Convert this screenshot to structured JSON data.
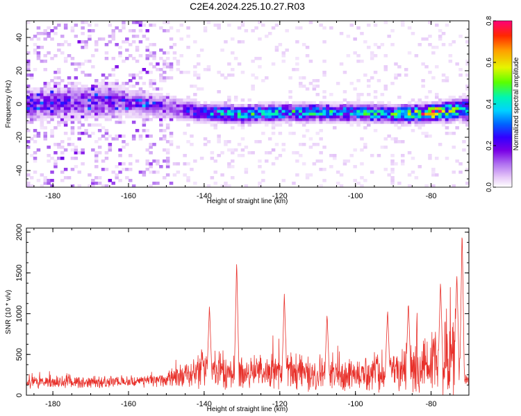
{
  "figure_title": "C2E4.2024.225.10.27.R03",
  "chart_data": [
    {
      "type": "heatmap",
      "xlabel": "Height of straight line (km)",
      "ylabel": "Frequency (Hz)",
      "xlim": [
        -187,
        -70
      ],
      "ylim": [
        -50,
        50
      ],
      "x_ticks": [
        -180,
        -160,
        -140,
        -120,
        -100,
        -80
      ],
      "y_ticks": [
        -40,
        -20,
        0,
        20,
        40
      ],
      "colorbar": {
        "label": "Normalized spectral amplitude",
        "range": [
          0,
          0.8
        ],
        "ticks": [
          0.0,
          0.2,
          0.4,
          0.6,
          0.8
        ],
        "colormap": [
          "#ffffff",
          "#e6c8f8",
          "#b070f0",
          "#7a00e6",
          "#3200ff",
          "#0064ff",
          "#00d2ff",
          "#00f5b4",
          "#5aff00",
          "#e6f500",
          "#ffa000",
          "#ff2800",
          "#ff0078"
        ]
      },
      "band": [
        {
          "x": -185,
          "center": 0,
          "half_width": 7,
          "peak": 0.22
        },
        {
          "x": -175,
          "center": 1,
          "half_width": 8,
          "peak": 0.22
        },
        {
          "x": -165,
          "center": 2,
          "half_width": 8,
          "peak": 0.2
        },
        {
          "x": -155,
          "center": 0,
          "half_width": 6,
          "peak": 0.2
        },
        {
          "x": -146,
          "center": -3,
          "half_width": 5,
          "peak": 0.22
        },
        {
          "x": -140,
          "center": -5,
          "half_width": 4,
          "peak": 0.42
        },
        {
          "x": -130,
          "center": -6,
          "half_width": 4,
          "peak": 0.45
        },
        {
          "x": -120,
          "center": -5,
          "half_width": 4,
          "peak": 0.48
        },
        {
          "x": -110,
          "center": -5,
          "half_width": 4,
          "peak": 0.45
        },
        {
          "x": -100,
          "center": -5,
          "half_width": 4,
          "peak": 0.45
        },
        {
          "x": -90,
          "center": -6,
          "half_width": 4,
          "peak": 0.5
        },
        {
          "x": -80,
          "center": -5,
          "half_width": 4,
          "peak": 0.75
        },
        {
          "x": -72,
          "center": -3,
          "half_width": 5,
          "peak": 0.5
        }
      ]
    },
    {
      "type": "line",
      "xlabel": "Height of straight line (km)",
      "ylabel": "SNR (10 * v/v)",
      "xlim": [
        -187,
        -70
      ],
      "ylim": [
        0,
        2050
      ],
      "x_ticks": [
        -180,
        -160,
        -140,
        -120,
        -100,
        -80
      ],
      "y_ticks": [
        0,
        500,
        1000,
        1500,
        2000
      ],
      "line_color": "#e8302a",
      "envelope": [
        {
          "x": -187,
          "base": 160,
          "spread": 120
        },
        {
          "x": -160,
          "base": 160,
          "spread": 120
        },
        {
          "x": -150,
          "base": 190,
          "spread": 140
        },
        {
          "x": -145,
          "base": 250,
          "spread": 230
        },
        {
          "x": -140,
          "base": 320,
          "spread": 430
        },
        {
          "x": -135,
          "base": 300,
          "spread": 400
        },
        {
          "x": -125,
          "base": 280,
          "spread": 330
        },
        {
          "x": -118,
          "base": 290,
          "spread": 420
        },
        {
          "x": -110,
          "base": 250,
          "spread": 300
        },
        {
          "x": -100,
          "base": 250,
          "spread": 300
        },
        {
          "x": -92,
          "base": 300,
          "spread": 420
        },
        {
          "x": -85,
          "base": 330,
          "spread": 550
        },
        {
          "x": -78,
          "base": 380,
          "spread": 700
        },
        {
          "x": -73,
          "base": 420,
          "spread": 900
        },
        {
          "x": -72,
          "base": 200,
          "spread": 150
        },
        {
          "x": -70,
          "base": 170,
          "spread": 100
        }
      ],
      "peaks": [
        {
          "x": -138.6,
          "y": 1100
        },
        {
          "x": -131.4,
          "y": 1660
        },
        {
          "x": -118.8,
          "y": 1250
        },
        {
          "x": -107.5,
          "y": 1000
        },
        {
          "x": -91.5,
          "y": 1050
        },
        {
          "x": -86.0,
          "y": 1150
        },
        {
          "x": -77.5,
          "y": 1400
        },
        {
          "x": -73.2,
          "y": 1500
        },
        {
          "x": -71.8,
          "y": 2050
        }
      ]
    }
  ]
}
